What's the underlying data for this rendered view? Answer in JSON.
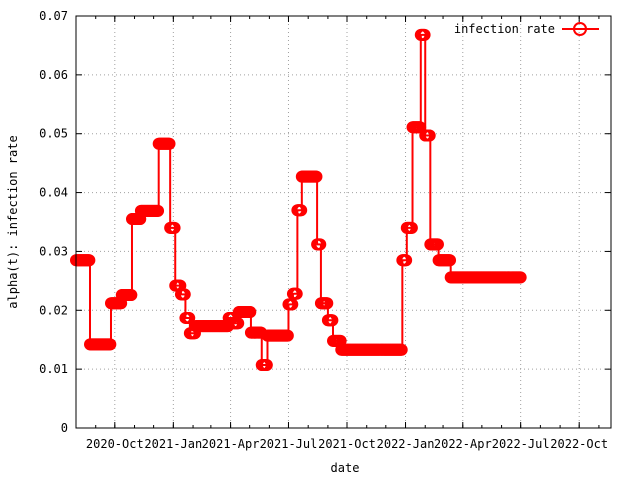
{
  "chart_data": {
    "type": "line",
    "title": "",
    "xlabel": "date",
    "ylabel": "alpha(t): infection rate",
    "ylim": [
      0,
      0.07
    ],
    "xlim": [
      "2020-08-01",
      "2022-11-20"
    ],
    "grid": true,
    "legend_position": "top-right",
    "y_ticks": [
      {
        "value": 0,
        "label": "0"
      },
      {
        "value": 0.01,
        "label": "0.01"
      },
      {
        "value": 0.02,
        "label": "0.02"
      },
      {
        "value": 0.03,
        "label": "0.03"
      },
      {
        "value": 0.04,
        "label": "0.04"
      },
      {
        "value": 0.05,
        "label": "0.05"
      },
      {
        "value": 0.06,
        "label": "0.06"
      },
      {
        "value": 0.07,
        "label": "0.07"
      }
    ],
    "x_ticks": [
      {
        "value": "2020-10-01",
        "label": "2020-Oct"
      },
      {
        "value": "2021-01-01",
        "label": "2021-Jan"
      },
      {
        "value": "2021-04-01",
        "label": "2021-Apr"
      },
      {
        "value": "2021-07-01",
        "label": "2021-Jul"
      },
      {
        "value": "2021-10-01",
        "label": "2021-Oct"
      },
      {
        "value": "2022-01-01",
        "label": "2022-Jan"
      },
      {
        "value": "2022-04-01",
        "label": "2022-Apr"
      },
      {
        "value": "2022-07-01",
        "label": "2022-Jul"
      },
      {
        "value": "2022-10-01",
        "label": "2022-Oct"
      }
    ],
    "series": [
      {
        "name": "infection rate",
        "color": "#ff0000",
        "marker": "circle",
        "segments": [
          {
            "start": "2020-08-01",
            "end": "2020-08-22",
            "value": 0.0285
          },
          {
            "start": "2020-08-23",
            "end": "2020-09-24",
            "value": 0.0142
          },
          {
            "start": "2020-09-25",
            "end": "2020-10-11",
            "value": 0.0212
          },
          {
            "start": "2020-10-12",
            "end": "2020-10-27",
            "value": 0.0226
          },
          {
            "start": "2020-10-28",
            "end": "2020-11-10",
            "value": 0.0355
          },
          {
            "start": "2020-11-11",
            "end": "2020-12-08",
            "value": 0.0369
          },
          {
            "start": "2020-12-09",
            "end": "2020-12-26",
            "value": 0.0483
          },
          {
            "start": "2020-12-27",
            "end": "2021-01-03",
            "value": 0.034
          },
          {
            "start": "2021-01-04",
            "end": "2021-01-12",
            "value": 0.0242
          },
          {
            "start": "2021-01-13",
            "end": "2021-01-19",
            "value": 0.0227
          },
          {
            "start": "2021-01-20",
            "end": "2021-01-26",
            "value": 0.0187
          },
          {
            "start": "2021-01-27",
            "end": "2021-02-04",
            "value": 0.0161
          },
          {
            "start": "2021-02-05",
            "end": "2021-03-28",
            "value": 0.0173
          },
          {
            "start": "2021-03-29",
            "end": "2021-04-04",
            "value": 0.0187
          },
          {
            "start": "2021-04-05",
            "end": "2021-04-13",
            "value": 0.0178
          },
          {
            "start": "2021-04-14",
            "end": "2021-05-02",
            "value": 0.0197
          },
          {
            "start": "2021-05-03",
            "end": "2021-05-19",
            "value": 0.0162
          },
          {
            "start": "2021-05-20",
            "end": "2021-05-28",
            "value": 0.0107
          },
          {
            "start": "2021-05-29",
            "end": "2021-06-30",
            "value": 0.0157
          },
          {
            "start": "2021-07-01",
            "end": "2021-07-07",
            "value": 0.021
          },
          {
            "start": "2021-07-08",
            "end": "2021-07-14",
            "value": 0.0228
          },
          {
            "start": "2021-07-15",
            "end": "2021-07-21",
            "value": 0.037
          },
          {
            "start": "2021-07-22",
            "end": "2021-08-14",
            "value": 0.0427
          },
          {
            "start": "2021-08-15",
            "end": "2021-08-20",
            "value": 0.0312
          },
          {
            "start": "2021-08-21",
            "end": "2021-08-31",
            "value": 0.0212
          },
          {
            "start": "2021-09-01",
            "end": "2021-09-08",
            "value": 0.0183
          },
          {
            "start": "2021-09-09",
            "end": "2021-09-21",
            "value": 0.0148
          },
          {
            "start": "2021-09-22",
            "end": "2021-12-26",
            "value": 0.0133
          },
          {
            "start": "2021-12-27",
            "end": "2022-01-02",
            "value": 0.0285
          },
          {
            "start": "2022-01-03",
            "end": "2022-01-11",
            "value": 0.034
          },
          {
            "start": "2022-01-12",
            "end": "2022-01-24",
            "value": 0.0511
          },
          {
            "start": "2022-01-25",
            "end": "2022-01-31",
            "value": 0.0668
          },
          {
            "start": "2022-02-01",
            "end": "2022-02-08",
            "value": 0.0497
          },
          {
            "start": "2022-02-09",
            "end": "2022-02-21",
            "value": 0.0312
          },
          {
            "start": "2022-02-22",
            "end": "2022-03-12",
            "value": 0.0285
          },
          {
            "start": "2022-03-13",
            "end": "2022-07-01",
            "value": 0.0256
          }
        ]
      }
    ]
  }
}
